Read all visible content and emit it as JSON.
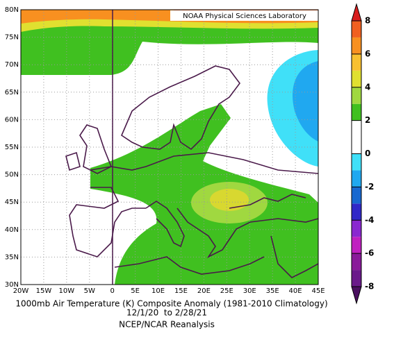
{
  "header": {
    "lab": "NOAA Physical Sciences Laboratory"
  },
  "map": {
    "lon_ticks": [
      {
        "value": -20,
        "label": "20W"
      },
      {
        "value": -15,
        "label": "15W"
      },
      {
        "value": -10,
        "label": "10W"
      },
      {
        "value": -5,
        "label": "5W"
      },
      0,
      {
        "value": 5,
        "label": "5E"
      },
      {
        "value": 10,
        "label": "10E"
      },
      {
        "value": 15,
        "label": "15E"
      },
      {
        "value": 20,
        "label": "20E"
      },
      {
        "value": 25,
        "label": "25E"
      },
      {
        "value": 30,
        "label": "30E"
      },
      {
        "value": 35,
        "label": "35E"
      },
      {
        "value": 40,
        "label": "40E"
      },
      {
        "value": 45,
        "label": "45E"
      }
    ],
    "lat_ticks": [
      {
        "value": 30,
        "label": "30N"
      },
      {
        "value": 35,
        "label": "35N"
      },
      {
        "value": 40,
        "label": "40N"
      },
      {
        "value": 45,
        "label": "45N"
      },
      {
        "value": 50,
        "label": "50N"
      },
      {
        "value": 55,
        "label": "55N"
      },
      {
        "value": 60,
        "label": "60N"
      },
      {
        "value": 65,
        "label": "65N"
      },
      {
        "value": 70,
        "label": "70N"
      },
      {
        "value": 75,
        "label": "75N"
      },
      {
        "value": 80,
        "label": "80N"
      }
    ]
  },
  "colorbar": {
    "levels": [
      -8,
      -6,
      -4,
      -2,
      0,
      2,
      4,
      6,
      8
    ],
    "colors": [
      "#6a1a8a",
      "#8a1a9a",
      "#c020c0",
      "#8a28d0",
      "#3028c8",
      "#1868d0",
      "#20a8f0",
      "#40e0f8",
      "#ffffff",
      "#ffffff",
      "#40c020",
      "#a0d840",
      "#e0e030",
      "#f8c030",
      "#f89020",
      "#f06020"
    ],
    "under": "#4a1060",
    "over": "#d81e1e"
  },
  "caption": {
    "title": "1000mb Air Temperature (K) Composite Anomaly (1981-2010 Climatology)",
    "dates": "12/1/20  to 2/28/21",
    "source": "NCEP/NCAR Reanalysis"
  }
}
